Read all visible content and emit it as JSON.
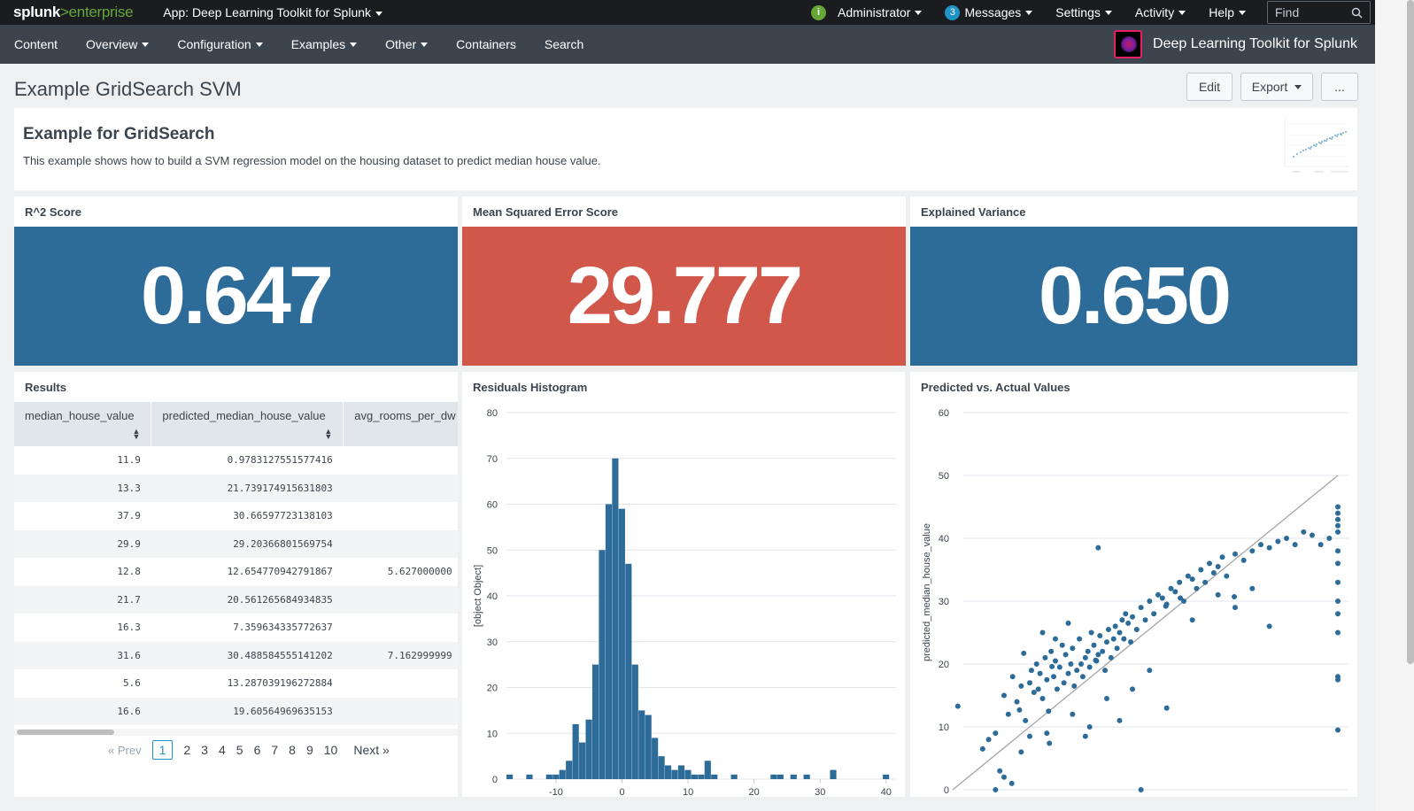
{
  "topbar": {
    "logo_main": "splunk",
    "logo_gt": ">",
    "logo_sub": "enterprise",
    "app_label": "App: Deep Learning Toolkit for Splunk",
    "status_icon": "i",
    "admin": "Administrator",
    "messages_count": "3",
    "messages": "Messages",
    "settings": "Settings",
    "activity": "Activity",
    "help": "Help",
    "find_placeholder": "Find"
  },
  "nav": {
    "items": [
      "Content",
      "Overview",
      "Configuration",
      "Examples",
      "Other",
      "Containers",
      "Search"
    ],
    "app_title": "Deep Learning Toolkit for Splunk"
  },
  "page": {
    "title": "Example GridSearch SVM",
    "edit": "Edit",
    "export": "Export",
    "more": "..."
  },
  "intro": {
    "heading": "Example for GridSearch",
    "description": "This example shows how to build a SVM regression model on the housing dataset to predict median house value."
  },
  "singles": [
    {
      "title": "R^2 Score",
      "value": "0.647",
      "color": "#2d6b99"
    },
    {
      "title": "Mean Squared Error Score",
      "value": "29.777",
      "color": "#d0574a"
    },
    {
      "title": "Explained Variance",
      "value": "0.650",
      "color": "#2d6b99"
    }
  ],
  "results": {
    "title": "Results",
    "columns": [
      "median_house_value",
      "predicted_median_house_value",
      "avg_rooms_per_dw"
    ],
    "rows": [
      [
        "11.9",
        "0.9783127551577416",
        ""
      ],
      [
        "13.3",
        "21.739174915631803",
        ""
      ],
      [
        "37.9",
        "30.66597723138103",
        ""
      ],
      [
        "29.9",
        "29.20366801569754",
        ""
      ],
      [
        "12.8",
        "12.654770942791867",
        "5.627000000"
      ],
      [
        "21.7",
        "20.561265684934835",
        ""
      ],
      [
        "16.3",
        "7.359634335772637",
        ""
      ],
      [
        "31.6",
        "30.488584555141202",
        "7.162999999"
      ],
      [
        "5.6",
        "13.287039196272884",
        ""
      ],
      [
        "16.6",
        "19.60564969635153",
        ""
      ]
    ],
    "pager": {
      "prev": "« Prev",
      "pages": [
        "1",
        "2",
        "3",
        "4",
        "5",
        "6",
        "7",
        "8",
        "9",
        "10"
      ],
      "next": "Next »",
      "active": "1"
    }
  },
  "histogram": {
    "title": "Residuals Histogram",
    "ylabel": "[object Object]"
  },
  "scatter": {
    "title": "Predicted vs. Actual Values",
    "ylabel": "predicted_median_house_value"
  },
  "chart_data": [
    {
      "type": "bar",
      "title": "Residuals Histogram",
      "xlabel": "",
      "ylabel": "[object Object]",
      "xlim": [
        -17,
        41
      ],
      "ylim": [
        0,
        80
      ],
      "yticks": [
        0,
        10,
        20,
        30,
        40,
        50,
        60,
        70,
        80
      ],
      "xticks": [
        -10,
        0,
        10,
        20,
        30,
        40
      ],
      "bin_width": 1,
      "bins": [
        {
          "x": -17,
          "v": 1
        },
        {
          "x": -14,
          "v": 1
        },
        {
          "x": -11,
          "v": 1
        },
        {
          "x": -10,
          "v": 1
        },
        {
          "x": -9,
          "v": 2
        },
        {
          "x": -8,
          "v": 4
        },
        {
          "x": -7,
          "v": 12
        },
        {
          "x": -6,
          "v": 8
        },
        {
          "x": -5,
          "v": 13
        },
        {
          "x": -4,
          "v": 25
        },
        {
          "x": -3,
          "v": 50
        },
        {
          "x": -2,
          "v": 60
        },
        {
          "x": -1,
          "v": 70
        },
        {
          "x": 0,
          "v": 59
        },
        {
          "x": 1,
          "v": 47
        },
        {
          "x": 2,
          "v": 25
        },
        {
          "x": 3,
          "v": 15
        },
        {
          "x": 4,
          "v": 14
        },
        {
          "x": 5,
          "v": 9
        },
        {
          "x": 6,
          "v": 5
        },
        {
          "x": 7,
          "v": 3
        },
        {
          "x": 8,
          "v": 2
        },
        {
          "x": 9,
          "v": 3
        },
        {
          "x": 10,
          "v": 2
        },
        {
          "x": 11,
          "v": 1
        },
        {
          "x": 12,
          "v": 1
        },
        {
          "x": 13,
          "v": 4
        },
        {
          "x": 14,
          "v": 1
        },
        {
          "x": 17,
          "v": 1
        },
        {
          "x": 23,
          "v": 1
        },
        {
          "x": 24,
          "v": 1
        },
        {
          "x": 26,
          "v": 1
        },
        {
          "x": 28,
          "v": 1
        },
        {
          "x": 32,
          "v": 2
        },
        {
          "x": 40,
          "v": 1
        }
      ]
    },
    {
      "type": "scatter",
      "title": "Predicted vs. Actual Values",
      "xlabel": "",
      "ylabel": "predicted_median_house_value",
      "xlim": [
        5,
        50
      ],
      "ylim": [
        0,
        60
      ],
      "yticks": [
        0,
        10,
        20,
        30,
        40,
        50,
        60
      ],
      "reference_line": [
        [
          5,
          0
        ],
        [
          50,
          50
        ]
      ],
      "series": [
        {
          "name": "",
          "points": [
            [
              11.9,
              1.0
            ],
            [
              13.3,
              21.7
            ],
            [
              37.9,
              30.7
            ],
            [
              29.9,
              29.2
            ],
            [
              12.8,
              12.7
            ],
            [
              21.7,
              20.6
            ],
            [
              16.3,
              7.4
            ],
            [
              31.6,
              30.5
            ],
            [
              5.6,
              13.3
            ],
            [
              16.6,
              19.6
            ],
            [
              8.5,
              6.5
            ],
            [
              9.2,
              8.0
            ],
            [
              10.0,
              9.0
            ],
            [
              10.5,
              3.0
            ],
            [
              11.0,
              15.0
            ],
            [
              11.5,
              12.0
            ],
            [
              12.0,
              18.0
            ],
            [
              12.5,
              14.0
            ],
            [
              13.0,
              16.5
            ],
            [
              13.5,
              11.0
            ],
            [
              14.0,
              17.0
            ],
            [
              14.2,
              19.0
            ],
            [
              14.5,
              15.5
            ],
            [
              14.8,
              20.0
            ],
            [
              15.0,
              16.0
            ],
            [
              15.2,
              18.5
            ],
            [
              15.5,
              14.5
            ],
            [
              15.8,
              21.0
            ],
            [
              16.0,
              17.5
            ],
            [
              16.2,
              12.5
            ],
            [
              16.5,
              22.0
            ],
            [
              16.8,
              18.0
            ],
            [
              17.0,
              20.5
            ],
            [
              17.2,
              16.0
            ],
            [
              17.5,
              19.5
            ],
            [
              17.8,
              23.0
            ],
            [
              18.0,
              17.0
            ],
            [
              18.2,
              21.5
            ],
            [
              18.5,
              18.5
            ],
            [
              18.8,
              20.0
            ],
            [
              19.0,
              22.5
            ],
            [
              19.2,
              16.5
            ],
            [
              19.5,
              19.0
            ],
            [
              19.8,
              24.0
            ],
            [
              20.0,
              20.0
            ],
            [
              20.2,
              18.0
            ],
            [
              20.5,
              21.0
            ],
            [
              20.8,
              22.0
            ],
            [
              21.0,
              19.5
            ],
            [
              21.2,
              25.0
            ],
            [
              21.5,
              23.0
            ],
            [
              21.8,
              20.5
            ],
            [
              22.0,
              21.5
            ],
            [
              22.2,
              24.5
            ],
            [
              22.5,
              22.0
            ],
            [
              22.8,
              19.0
            ],
            [
              23.0,
              23.5
            ],
            [
              23.2,
              25.5
            ],
            [
              23.5,
              21.0
            ],
            [
              23.8,
              24.0
            ],
            [
              24.0,
              26.0
            ],
            [
              24.2,
              22.5
            ],
            [
              24.5,
              25.0
            ],
            [
              24.8,
              27.0
            ],
            [
              25.0,
              24.0
            ],
            [
              25.2,
              28.0
            ],
            [
              25.5,
              26.5
            ],
            [
              25.8,
              23.5
            ],
            [
              26.0,
              27.5
            ],
            [
              26.5,
              25.5
            ],
            [
              27.0,
              29.0
            ],
            [
              27.5,
              27.0
            ],
            [
              28.0,
              30.0
            ],
            [
              28.5,
              28.0
            ],
            [
              29.0,
              31.0
            ],
            [
              29.5,
              30.5
            ],
            [
              30.0,
              29.5
            ],
            [
              30.5,
              32.0
            ],
            [
              31.0,
              31.5
            ],
            [
              31.5,
              33.0
            ],
            [
              32.0,
              30.0
            ],
            [
              32.5,
              34.0
            ],
            [
              33.0,
              33.5
            ],
            [
              33.5,
              32.0
            ],
            [
              34.0,
              35.0
            ],
            [
              34.5,
              33.0
            ],
            [
              35.0,
              36.0
            ],
            [
              35.5,
              34.5
            ],
            [
              36.0,
              35.5
            ],
            [
              36.5,
              37.0
            ],
            [
              37.0,
              34.0
            ],
            [
              38.0,
              37.5
            ],
            [
              39.0,
              36.5
            ],
            [
              40.0,
              38.0
            ],
            [
              41.0,
              39.0
            ],
            [
              42.0,
              38.5
            ],
            [
              43.0,
              39.5
            ],
            [
              44.0,
              40.0
            ],
            [
              45.0,
              39.0
            ],
            [
              46.0,
              41.0
            ],
            [
              47.0,
              40.5
            ],
            [
              48.0,
              39.0
            ],
            [
              49.0,
              40.0
            ],
            [
              50.0,
              44.0
            ],
            [
              50.0,
              45.0
            ],
            [
              50.0,
              43.0
            ],
            [
              50.0,
              42.0
            ],
            [
              50.0,
              41.0
            ],
            [
              50.0,
              38.0
            ],
            [
              50.0,
              36.0
            ],
            [
              50.0,
              33.0
            ],
            [
              50.0,
              30.0
            ],
            [
              50.0,
              28.0
            ],
            [
              50.0,
              25.0
            ],
            [
              50.0,
              18.0
            ],
            [
              50.0,
              17.5
            ],
            [
              50.0,
              9.5
            ],
            [
              22.0,
              38.5
            ],
            [
              27.0,
              0.0
            ],
            [
              30.0,
              13.0
            ],
            [
              24.5,
              11.0
            ],
            [
              21.0,
              10.0
            ],
            [
              20.5,
              8.5
            ],
            [
              19.0,
              12.0
            ],
            [
              17.0,
              24.0
            ],
            [
              15.5,
              25.0
            ],
            [
              13.0,
              6.0
            ],
            [
              11.0,
              2.0
            ],
            [
              10.0,
              0.0
            ],
            [
              42.0,
              26.0
            ],
            [
              38.0,
              29.0
            ],
            [
              40.0,
              32.0
            ],
            [
              33.0,
              27.0
            ],
            [
              36.0,
              31.0
            ],
            [
              28.0,
              19.0
            ],
            [
              26.0,
              16.0
            ],
            [
              23.0,
              14.5
            ],
            [
              18.5,
              26.5
            ],
            [
              16.0,
              9.0
            ],
            [
              14.0,
              8.5
            ]
          ]
        }
      ]
    }
  ]
}
